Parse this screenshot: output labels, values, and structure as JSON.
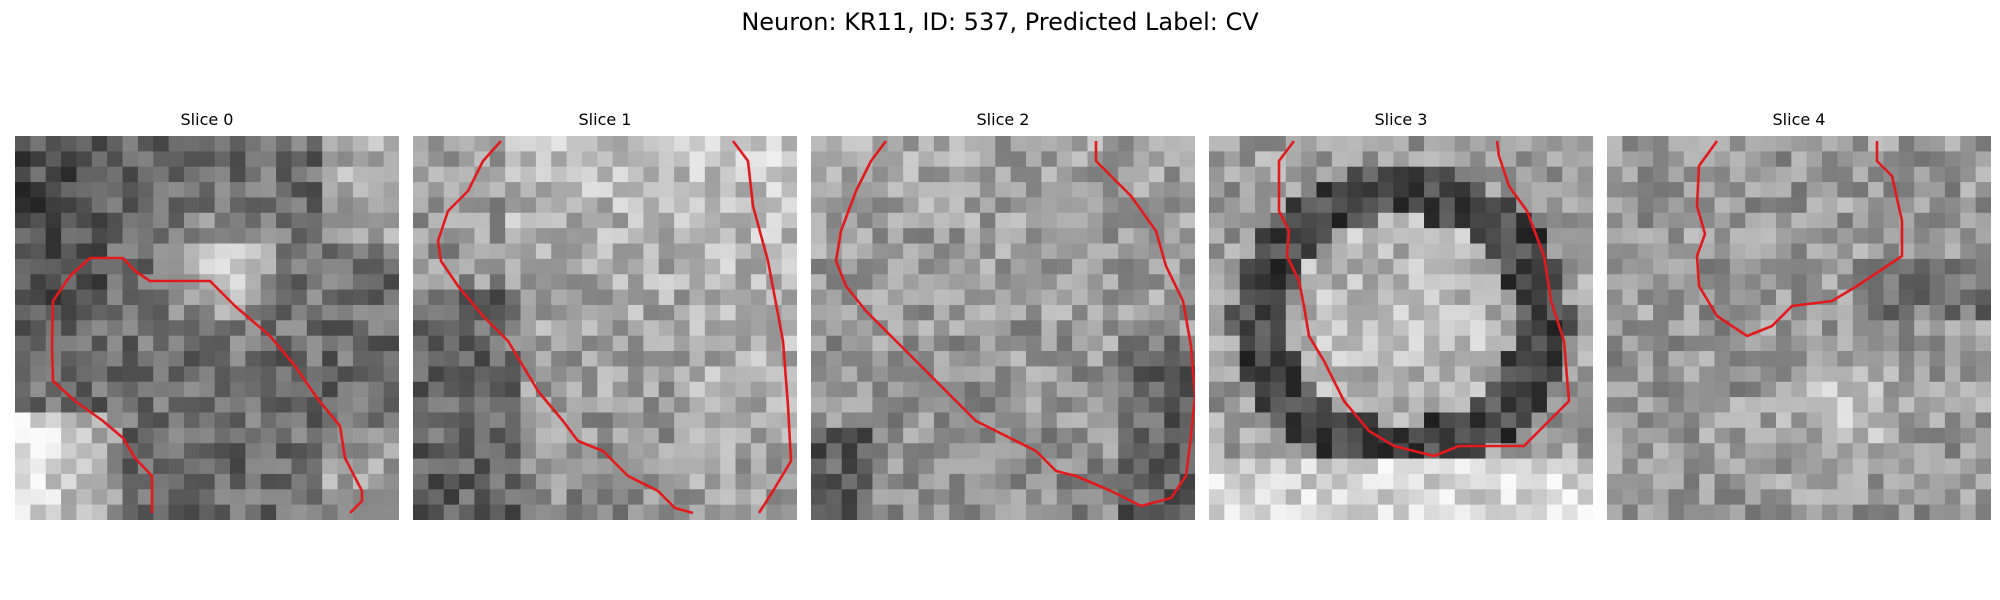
{
  "figure": {
    "title": "Neuron: KR11, ID: 537, Predicted Label: CV"
  },
  "colors": {
    "contour": "#e31a1c",
    "background": "#ffffff"
  },
  "slices": [
    {
      "title": "Slice 0"
    },
    {
      "title": "Slice 1"
    },
    {
      "title": "Slice 2"
    },
    {
      "title": "Slice 3"
    },
    {
      "title": "Slice 4"
    }
  ]
}
